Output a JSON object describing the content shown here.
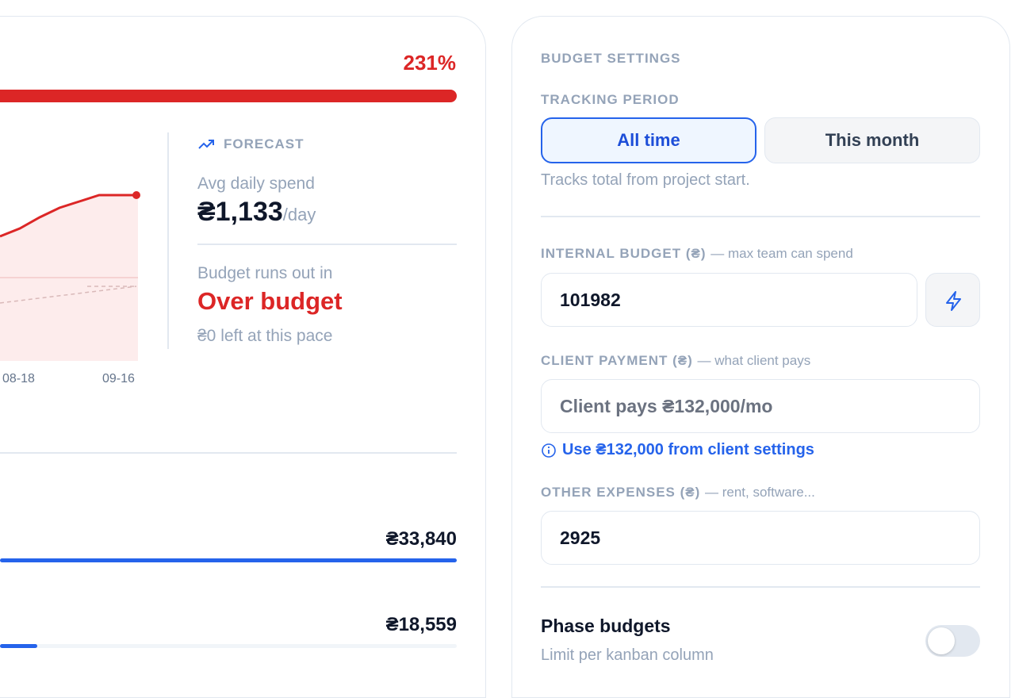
{
  "left_panel": {
    "percent": "231%",
    "chart": {
      "x_labels": [
        "08-18",
        "09-16"
      ]
    },
    "forecast": {
      "heading": "FORECAST",
      "avg_label": "Avg daily spend",
      "avg_value": "₴1,133",
      "avg_unit": "/day",
      "runout_label": "Budget runs out in",
      "runout_value": "Over budget",
      "runout_note": "₴0 left at this pace"
    },
    "totals": [
      "₴33,840",
      "₴18,559"
    ]
  },
  "settings": {
    "title": "BUDGET SETTINGS",
    "tracking": {
      "label": "TRACKING PERIOD",
      "options": [
        "All time",
        "This month"
      ],
      "hint": "Tracks total from project start."
    },
    "internal_budget": {
      "label": "INTERNAL BUDGET (₴)",
      "note": "— max team can spend",
      "value": "101982"
    },
    "client_payment": {
      "label": "CLIENT PAYMENT (₴)",
      "note": "— what client pays",
      "placeholder": "Client pays ₴132,000/mo",
      "link": "Use ₴132,000 from client settings"
    },
    "other_expenses": {
      "label": "OTHER EXPENSES (₴)",
      "note": "— rent, software...",
      "value": "2925"
    },
    "phase": {
      "title": "Phase budgets",
      "subtitle": "Limit per kanban column"
    }
  }
}
